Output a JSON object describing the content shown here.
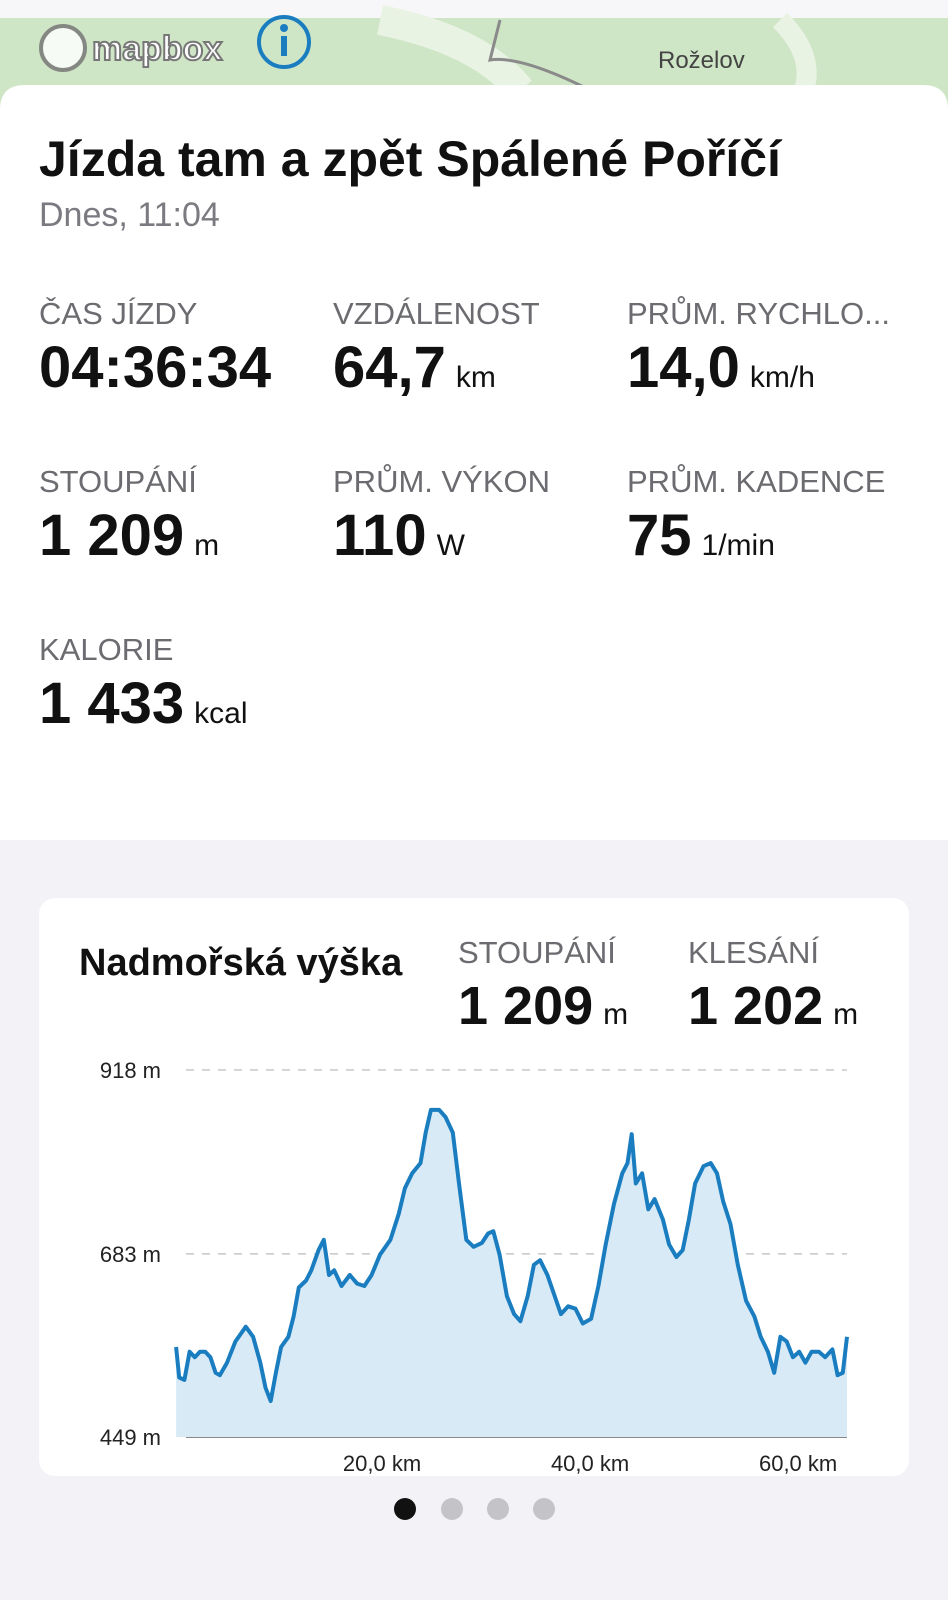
{
  "map": {
    "brand": "mapbox",
    "place": "Roželov"
  },
  "header": {
    "title": "Jízda tam a zpět Spálené Poříčí",
    "subtitle": "Dnes, 11:04"
  },
  "stats": [
    {
      "label": "ČAS JÍZDY",
      "value": "04:36:34"
    },
    {
      "label": "VZDÁLENOST",
      "value": "64,7",
      "unit": "km"
    },
    {
      "label": "PRŮM. RYCHLO...",
      "value": "14,0",
      "unit": "km/h"
    },
    {
      "label": "STOUPÁNÍ",
      "value": "1 209",
      "unit": "m"
    },
    {
      "label": "PRŮM. VÝKON",
      "value": "110",
      "unit": "W"
    },
    {
      "label": "PRŮM. KADENCE",
      "value": "75",
      "unit": "1/min"
    },
    {
      "label": "KALORIE",
      "value": "1 433",
      "unit": "kcal"
    }
  ],
  "chart_data": {
    "type": "area",
    "title": "Nadmořská výška",
    "summary": [
      {
        "label": "STOUPÁNÍ",
        "value": "1 209",
        "unit": "m"
      },
      {
        "label": "KLESÁNÍ",
        "value": "1 202",
        "unit": "m"
      }
    ],
    "color": "#1a7dc0",
    "fill": "#d9eaf7",
    "x": [
      0.2,
      0.5,
      1.0,
      1.5,
      2.0,
      2.5,
      3.0,
      3.5,
      4.0,
      4.4,
      5.1,
      5.9,
      6.9,
      7.6,
      8.3,
      8.8,
      9.3,
      9.8,
      10.3,
      11.0,
      11.5,
      12.0,
      12.7,
      13.2,
      13.9,
      14.4,
      14.9,
      15.4,
      16.1,
      16.9,
      17.6,
      18.3,
      19.0,
      19.8,
      20.8,
      21.6,
      22.2,
      22.9,
      23.7,
      24.2,
      24.7,
      25.5,
      26.1,
      26.8,
      27.4,
      28.1,
      28.8,
      29.6,
      30.2,
      30.7,
      31.3,
      32.0,
      32.7,
      33.3,
      34.0,
      34.6,
      35.2,
      35.9,
      36.6,
      37.2,
      37.9,
      38.6,
      39.3,
      40.1,
      40.8,
      41.5,
      42.3,
      43.1,
      43.6,
      44.0,
      44.4,
      45.0,
      45.6,
      46.2,
      47.0,
      47.6,
      48.3,
      48.9,
      49.5,
      50.1,
      50.9,
      51.6,
      52.2,
      52.8,
      53.5,
      54.2,
      55.0,
      55.8,
      56.4,
      57.1,
      57.7,
      58.3,
      58.9,
      59.5,
      60.1,
      60.7,
      61.3,
      62.0,
      62.6,
      63.3,
      63.8,
      64.3,
      64.7
    ],
    "values": [
      564,
      525,
      522,
      558,
      551,
      558,
      558,
      551,
      531,
      528,
      544,
      571,
      590,
      577,
      544,
      512,
      495,
      531,
      564,
      577,
      603,
      640,
      649,
      662,
      688,
      701,
      656,
      662,
      642,
      656,
      645,
      642,
      656,
      682,
      701,
      734,
      767,
      786,
      799,
      838,
      867,
      867,
      858,
      838,
      773,
      701,
      692,
      697,
      709,
      712,
      682,
      629,
      606,
      597,
      629,
      669,
      675,
      656,
      629,
      606,
      616,
      613,
      594,
      600,
      642,
      695,
      747,
      786,
      799,
      836,
      773,
      786,
      740,
      753,
      727,
      695,
      679,
      688,
      727,
      773,
      795,
      799,
      786,
      750,
      721,
      669,
      623,
      603,
      577,
      558,
      531,
      577,
      571,
      551,
      558,
      544,
      558,
      558,
      551,
      561,
      528,
      531,
      577
    ],
    "xlim": [
      0,
      64.7
    ],
    "ylim": [
      449,
      918
    ],
    "xticks": [
      {
        "value": 20,
        "label": "20,0 km"
      },
      {
        "value": 40,
        "label": "40,0 km"
      },
      {
        "value": 60,
        "label": "60,0 km"
      }
    ],
    "yticks": [
      {
        "value": 449,
        "label": "449 m"
      },
      {
        "value": 683,
        "label": "683 m"
      },
      {
        "value": 918,
        "label": "918 m"
      }
    ],
    "grid": true
  }
}
